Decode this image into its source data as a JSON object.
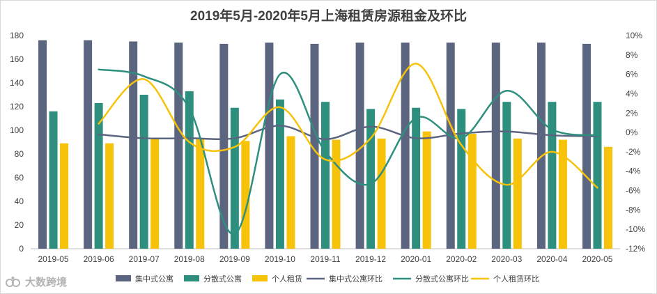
{
  "chart_data": {
    "type": "bar",
    "title": "2019年5月-2020年5月上海租赁房源租金及环比",
    "categories": [
      "2019-05",
      "2019-06",
      "2019-07",
      "2019-08",
      "2019-09",
      "2019-10",
      "2019-11",
      "2019-12",
      "2020-01",
      "2020-02",
      "2020-03",
      "2020-04",
      "2020-05"
    ],
    "y_left": {
      "ticks": [
        "0",
        "20",
        "40",
        "60",
        "80",
        "100",
        "120",
        "140",
        "160",
        "180"
      ],
      "ylim": [
        0,
        180
      ]
    },
    "y_right": {
      "ticks": [
        "-12%",
        "-10%",
        "-8%",
        "-6%",
        "-4%",
        "-2%",
        "0%",
        "2%",
        "4%",
        "6%",
        "8%",
        "10%"
      ],
      "ylim": [
        -12,
        10
      ]
    },
    "bar_series": [
      {
        "name": "集中式公寓",
        "color": "#5b6580",
        "values": [
          176,
          176,
          175,
          174,
          173,
          174,
          173,
          174,
          174,
          174,
          174,
          174,
          173
        ]
      },
      {
        "name": "分散式公寓",
        "color": "#2f8f7e",
        "values": [
          116,
          123,
          130,
          133,
          119,
          126,
          124,
          118,
          119,
          118,
          124,
          124,
          124
        ]
      },
      {
        "name": "个人租赁",
        "color": "#f7c20a",
        "values": [
          89,
          89,
          93,
          93,
          91,
          95,
          92,
          93,
          99,
          97,
          93,
          92,
          86
        ]
      }
    ],
    "line_series": [
      {
        "name": "集中式公寓环比",
        "color": "#5b6580",
        "values": [
          null,
          -0.2,
          -0.6,
          -0.6,
          -0.6,
          0.7,
          -0.7,
          0.6,
          -0.6,
          -0.1,
          0.1,
          -0.3,
          -0.4
        ]
      },
      {
        "name": "分散式公寓环比",
        "color": "#2f8f7e",
        "values": [
          null,
          6.5,
          5.8,
          2.5,
          -10.5,
          6.0,
          -2.0,
          -5.3,
          1.5,
          -0.6,
          4.3,
          0.3,
          -0.3
        ]
      },
      {
        "name": "个人租赁环比",
        "color": "#f7c20a",
        "values": [
          null,
          0.9,
          5.5,
          -1.0,
          -1.5,
          2.6,
          -2.8,
          -0.6,
          7.1,
          -1.3,
          -5.4,
          -2.0,
          -5.7
        ]
      }
    ],
    "legend_position": "bottom",
    "grid": false
  },
  "watermark": {
    "text": "大数跨境"
  }
}
